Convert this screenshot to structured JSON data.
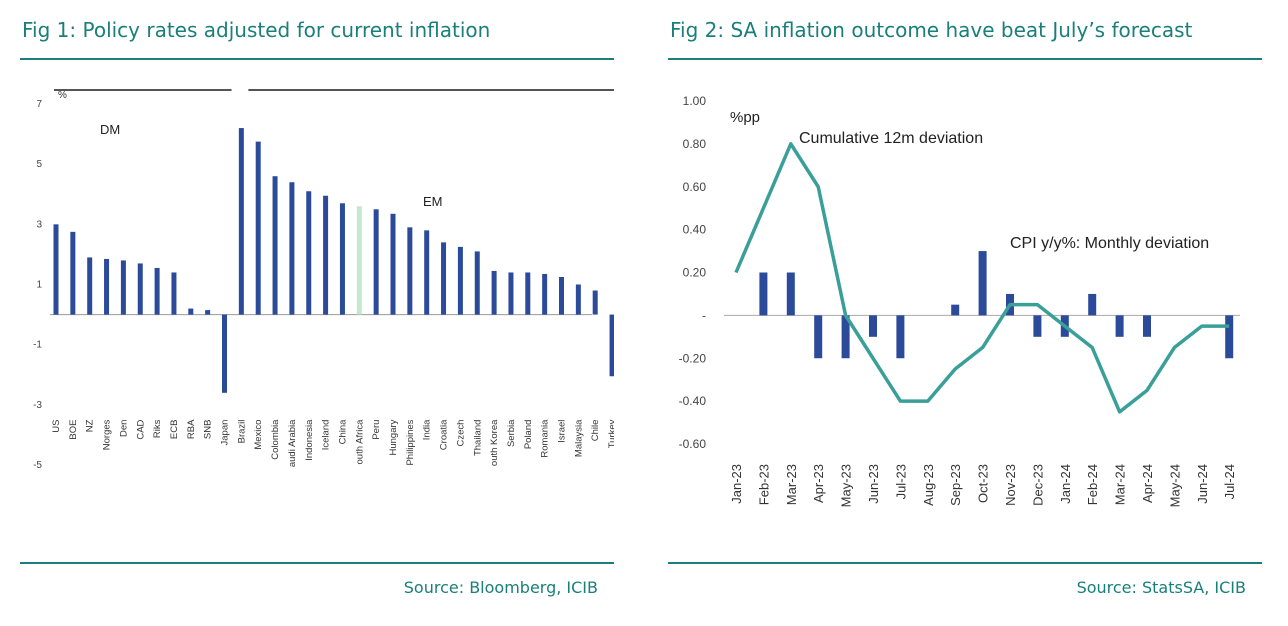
{
  "fig1": {
    "title": "Fig 1: Policy rates adjusted for current inflation",
    "source": "Source: Bloomberg, ICIB",
    "unit_label": "%",
    "group_dm_label": "DM",
    "group_em_label": "EM",
    "colors": {
      "bar": "#2b4a9a",
      "highlight": "#c6e8cc",
      "axis": "#999999"
    }
  },
  "fig2": {
    "title": "Fig 2: SA inflation outcome have beat July’s forecast",
    "source": "Source: StatsSA, ICIB",
    "unit_label": "%pp",
    "line_annotation": "Cumulative 12m deviation",
    "bar_annotation": "CPI y/y%: Monthly deviation",
    "colors": {
      "bar": "#2b4a9a",
      "line": "#3a9f98",
      "axis": "#aaaaaa"
    }
  },
  "chart_data": [
    {
      "type": "bar",
      "title": "Fig 1: Policy rates adjusted for current inflation",
      "ylabel": "%",
      "ylim": [
        -5,
        7
      ],
      "yticks": [
        "7",
        "5",
        "3",
        "1",
        "-1",
        "-3",
        "-5"
      ],
      "ytick_values": [
        7,
        5,
        3,
        1,
        -1,
        -3,
        -5
      ],
      "categories": [
        "US",
        "BOE",
        "NZ",
        "Norges",
        "Den",
        "CAD",
        "Riks",
        "ECB",
        "RBA",
        "SNB",
        "Japan",
        "Brazil",
        "Mexico",
        "Colombia",
        "audi Arabia",
        "Indonesia",
        "Iceland",
        "China",
        "outh Africa",
        "Peru",
        "Hungary",
        "Philippines",
        "India",
        "Croatia",
        "Czech",
        "Thailand",
        "outh Korea",
        "Serbia",
        "Poland",
        "Romania",
        "Israel",
        "Malaysia",
        "Chile",
        "Turkey"
      ],
      "values": [
        3.0,
        2.75,
        1.9,
        1.85,
        1.8,
        1.7,
        1.55,
        1.4,
        0.2,
        0.15,
        -2.6,
        6.2,
        5.75,
        4.6,
        4.4,
        4.1,
        3.95,
        3.7,
        3.6,
        3.5,
        3.35,
        2.9,
        2.8,
        2.4,
        2.25,
        2.1,
        1.45,
        1.4,
        1.4,
        1.35,
        1.25,
        1.0,
        0.8,
        -2.05
      ],
      "highlight_category": "outh Africa",
      "groups": [
        {
          "name": "DM",
          "from": "US",
          "to": "Japan"
        },
        {
          "name": "EM",
          "from": "Brazil",
          "to": "Turkey"
        }
      ]
    },
    {
      "type": "bar+line",
      "title": "Fig 2: SA inflation outcome have beat July’s forecast",
      "ylabel": "%pp",
      "ylim": [
        -0.6,
        1.0
      ],
      "yticks": [
        "1.00",
        "0.80",
        "0.60",
        "0.40",
        "0.20",
        "-",
        "-0.20",
        "-0.40",
        "-0.60"
      ],
      "ytick_values": [
        1.0,
        0.8,
        0.6,
        0.4,
        0.2,
        0,
        -0.2,
        -0.4,
        -0.6
      ],
      "categories": [
        "Jan-23",
        "Feb-23",
        "Mar-23",
        "Apr-23",
        "May-23",
        "Jun-23",
        "Jul-23",
        "Aug-23",
        "Sep-23",
        "Oct-23",
        "Nov-23",
        "Dec-23",
        "Jan-24",
        "Feb-24",
        "Mar-24",
        "Apr-24",
        "May-24",
        "Jun-24",
        "Jul-24"
      ],
      "series": [
        {
          "name": "CPI y/y%: Monthly deviation",
          "type": "bar",
          "values": [
            0,
            0.2,
            0.2,
            -0.2,
            -0.2,
            -0.1,
            -0.2,
            0,
            0.05,
            0.3,
            0.1,
            -0.1,
            -0.1,
            0.1,
            -0.1,
            -0.1,
            0,
            0,
            -0.2
          ]
        },
        {
          "name": "Cumulative 12m deviation",
          "type": "line",
          "values": [
            0.2,
            0.5,
            0.8,
            0.6,
            0.0,
            -0.2,
            -0.4,
            -0.4,
            -0.25,
            -0.15,
            0.05,
            0.05,
            -0.05,
            -0.15,
            -0.45,
            -0.35,
            -0.15,
            -0.05,
            -0.05
          ]
        }
      ]
    }
  ]
}
